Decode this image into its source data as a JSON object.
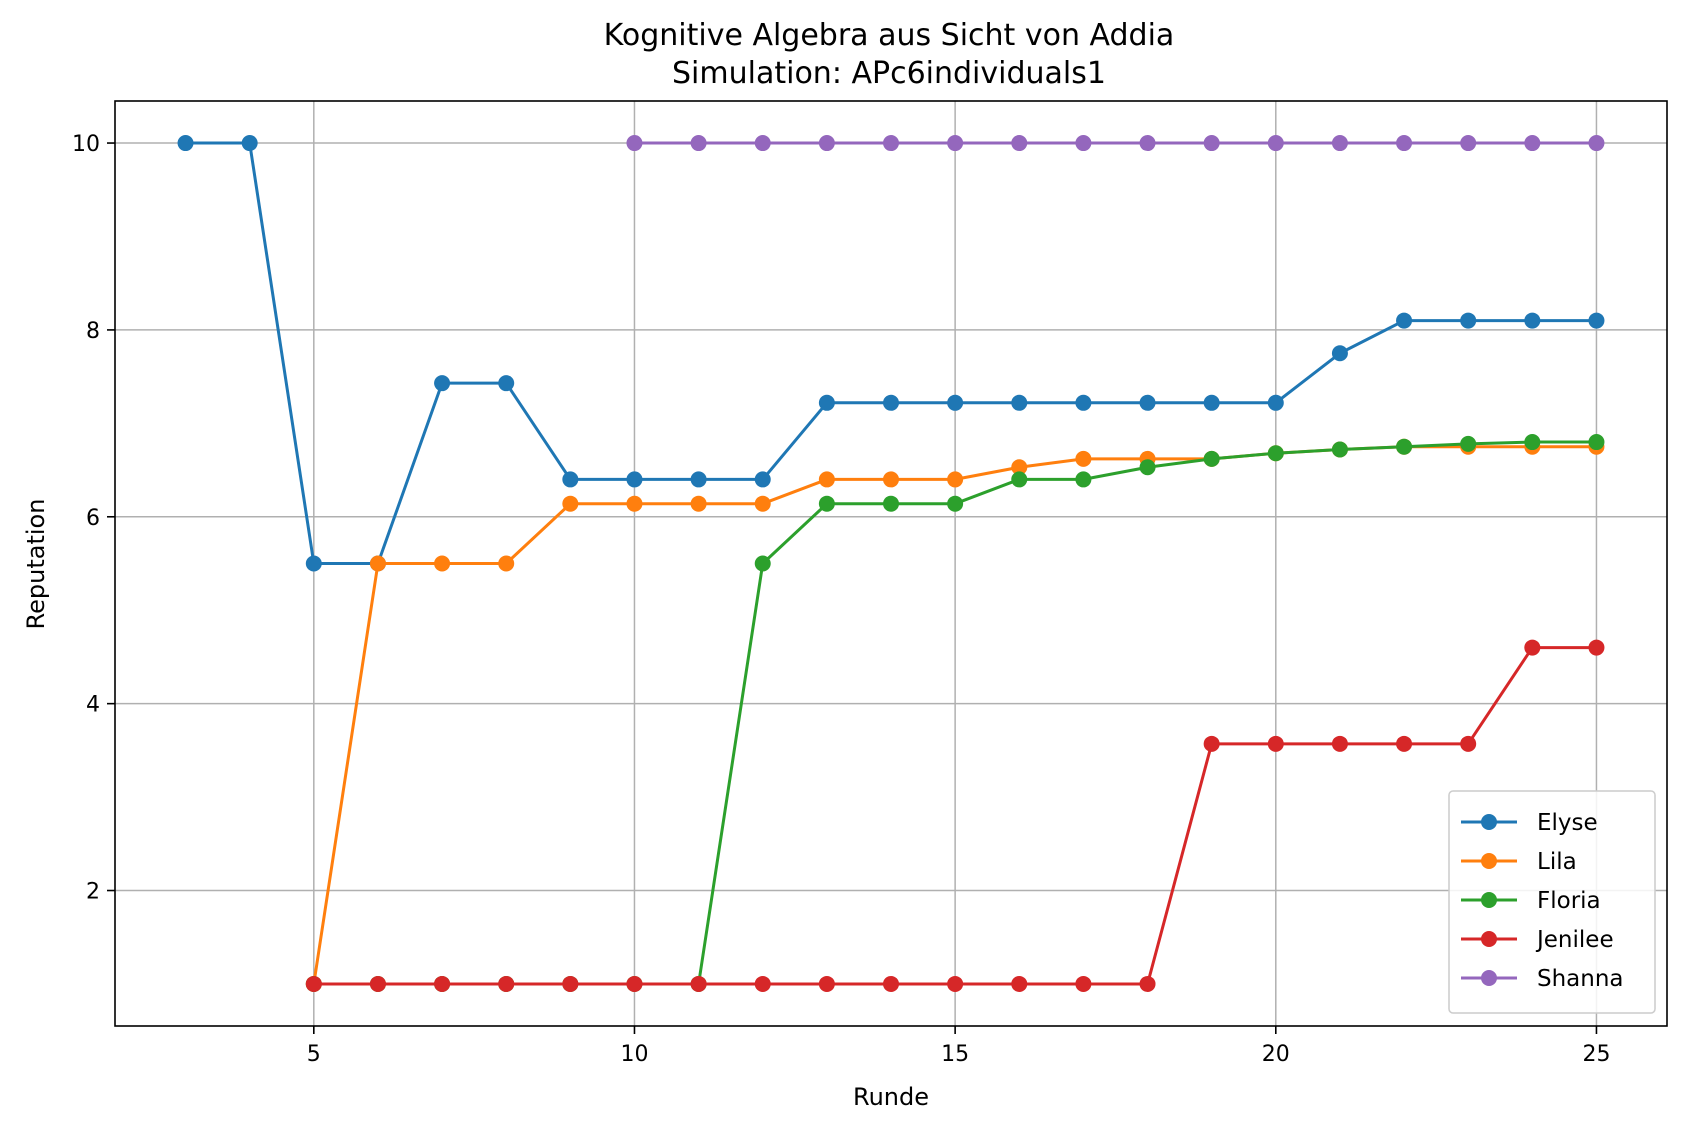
{
  "chart_data": {
    "type": "line",
    "title": "Kognitive Algebra aus Sicht von Addia",
    "subtitle": "Simulation: APc6individuals1",
    "xlabel": "Runde",
    "ylabel": "Reputation",
    "xlim": [
      1.9,
      26.1
    ],
    "ylim": [
      0.55,
      10.45
    ],
    "xticks": [
      5,
      10,
      15,
      20,
      25
    ],
    "yticks": [
      2,
      4,
      6,
      8,
      10
    ],
    "grid": true,
    "legend_position": "lower-right",
    "series": [
      {
        "name": "Elyse",
        "color": "#1f77b4",
        "x": [
          3,
          4,
          5,
          6,
          7,
          8,
          9,
          10,
          11,
          12,
          13,
          14,
          15,
          16,
          17,
          18,
          19,
          20,
          21,
          22,
          23,
          24,
          25
        ],
        "y": [
          10,
          10,
          5.5,
          5.5,
          7.43,
          7.43,
          6.4,
          6.4,
          6.4,
          6.4,
          7.22,
          7.22,
          7.22,
          7.22,
          7.22,
          7.22,
          7.22,
          7.22,
          7.75,
          8.1,
          8.1,
          8.1,
          8.1
        ]
      },
      {
        "name": "Lila",
        "color": "#ff7f0e",
        "x": [
          5,
          6,
          7,
          8,
          9,
          10,
          11,
          12,
          13,
          14,
          15,
          16,
          17,
          18,
          19,
          20,
          21,
          22,
          23,
          24,
          25
        ],
        "y": [
          1,
          5.5,
          5.5,
          5.5,
          6.14,
          6.14,
          6.14,
          6.14,
          6.4,
          6.4,
          6.4,
          6.53,
          6.62,
          6.62,
          6.62,
          6.68,
          6.72,
          6.75,
          6.75,
          6.75,
          6.75
        ]
      },
      {
        "name": "Floria",
        "color": "#2ca02c",
        "x": [
          5,
          6,
          7,
          8,
          9,
          10,
          11,
          12,
          13,
          14,
          15,
          16,
          17,
          18,
          19,
          20,
          21,
          22,
          23,
          24,
          25
        ],
        "y": [
          1,
          1,
          1,
          1,
          1,
          1,
          1,
          5.5,
          6.14,
          6.14,
          6.14,
          6.4,
          6.4,
          6.53,
          6.62,
          6.68,
          6.72,
          6.75,
          6.78,
          6.8,
          6.8
        ]
      },
      {
        "name": "Jenilee",
        "color": "#d62728",
        "x": [
          5,
          6,
          7,
          8,
          9,
          10,
          11,
          12,
          13,
          14,
          15,
          16,
          17,
          18,
          19,
          20,
          21,
          22,
          23,
          24,
          25
        ],
        "y": [
          1,
          1,
          1,
          1,
          1,
          1,
          1,
          1,
          1,
          1,
          1,
          1,
          1,
          1,
          3.57,
          3.57,
          3.57,
          3.57,
          3.57,
          4.6,
          4.6
        ]
      },
      {
        "name": "Shanna",
        "color": "#9467bd",
        "x": [
          10,
          11,
          12,
          13,
          14,
          15,
          16,
          17,
          18,
          19,
          20,
          21,
          22,
          23,
          24,
          25
        ],
        "y": [
          10,
          10,
          10,
          10,
          10,
          10,
          10,
          10,
          10,
          10,
          10,
          10,
          10,
          10,
          10,
          10
        ]
      }
    ]
  }
}
